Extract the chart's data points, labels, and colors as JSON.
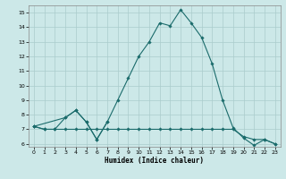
{
  "xlabel": "Humidex (Indice chaleur)",
  "bg_color": "#cce8e8",
  "grid_color": "#aacccc",
  "line_color": "#1a6b6b",
  "xlim": [
    -0.5,
    23.5
  ],
  "ylim": [
    5.8,
    15.5
  ],
  "xticks": [
    0,
    1,
    2,
    3,
    4,
    5,
    6,
    7,
    8,
    9,
    10,
    11,
    12,
    13,
    14,
    15,
    16,
    17,
    18,
    19,
    20,
    21,
    22,
    23
  ],
  "yticks": [
    6,
    7,
    8,
    9,
    10,
    11,
    12,
    13,
    14,
    15
  ],
  "series": [
    {
      "style": "solid",
      "x": [
        0,
        1,
        2,
        3,
        4,
        5,
        6,
        7,
        8,
        9,
        10,
        11,
        12,
        13,
        14,
        15,
        16,
        17,
        18,
        19,
        20,
        21,
        22,
        23
      ],
      "y": [
        7.2,
        7.0,
        7.0,
        7.8,
        8.3,
        7.5,
        6.3,
        7.5,
        9.0,
        10.5,
        12.0,
        13.0,
        14.3,
        14.1,
        15.2,
        14.3,
        13.3,
        11.5,
        9.0,
        7.1,
        6.4,
        5.9,
        6.3,
        6.0
      ]
    },
    {
      "style": "solid",
      "x": [
        0,
        1,
        2,
        3,
        4,
        5,
        6,
        7,
        8,
        9,
        10,
        11,
        12,
        13,
        14,
        15,
        16,
        17,
        18,
        19,
        20,
        21,
        22,
        23
      ],
      "y": [
        7.2,
        7.0,
        7.0,
        7.0,
        7.0,
        7.0,
        7.0,
        7.0,
        7.0,
        7.0,
        7.0,
        7.0,
        7.0,
        7.0,
        7.0,
        7.0,
        7.0,
        7.0,
        7.0,
        7.0,
        6.5,
        6.3,
        6.3,
        6.0
      ]
    },
    {
      "style": "solid",
      "x": [
        0,
        3,
        4,
        5,
        6,
        7
      ],
      "y": [
        7.2,
        7.8,
        8.3,
        7.5,
        6.3,
        7.5
      ]
    }
  ]
}
